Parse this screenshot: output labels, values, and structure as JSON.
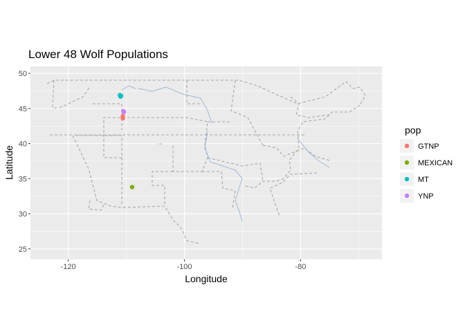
{
  "chart_data": {
    "type": "scatter",
    "title": "Lower 48 Wolf Populations",
    "xlabel": "Longitude",
    "ylabel": "Latitude",
    "xlim": [
      -126.5,
      -66
    ],
    "ylim": [
      23.5,
      51
    ],
    "x_ticks": [
      -120,
      -100,
      -80
    ],
    "y_ticks": [
      25,
      30,
      35,
      40,
      45,
      50
    ],
    "x_tick_labels": [
      "-120",
      "-100",
      "-80"
    ],
    "y_tick_labels": [
      "25",
      "30",
      "35",
      "40",
      "45",
      "50"
    ],
    "grid": true,
    "background_map": "US state boundaries (dashed gray lines) and rivers (light blue)",
    "legend": {
      "title": "pop",
      "position": "right"
    },
    "series": [
      {
        "name": "GTNP",
        "color": "#F8766D",
        "points": [
          {
            "x": -110.6,
            "y": 43.9
          },
          {
            "x": -110.6,
            "y": 43.6
          }
        ]
      },
      {
        "name": "MEXICAN",
        "color": "#7CAE00",
        "points": [
          {
            "x": -109.0,
            "y": 33.8
          }
        ]
      },
      {
        "name": "MT",
        "color": "#00BFC4",
        "points": [
          {
            "x": -111.1,
            "y": 46.9
          },
          {
            "x": -110.9,
            "y": 46.8
          },
          {
            "x": -111.0,
            "y": 46.7
          }
        ]
      },
      {
        "name": "YNP",
        "color": "#C77CFF",
        "points": [
          {
            "x": -110.5,
            "y": 44.6
          },
          {
            "x": -110.4,
            "y": 44.5
          }
        ]
      }
    ]
  }
}
